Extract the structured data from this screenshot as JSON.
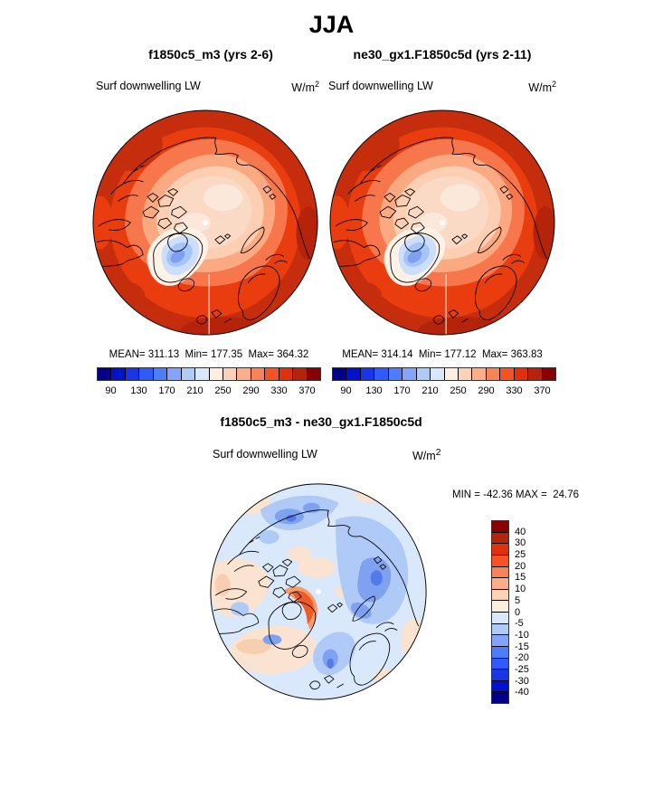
{
  "title": "JJA",
  "top_left": {
    "title": "f1850c5_m3 (yrs 2-6)",
    "field": "Surf downwelling LW",
    "units_base": "W/m",
    "units_exp": "2",
    "stats": "MEAN= 311.13  Min= 177.35  Max= 364.32",
    "ticks": [
      "90",
      "130",
      "170",
      "210",
      "250",
      "290",
      "330",
      "370"
    ],
    "palette": [
      "#00008B",
      "#0012CD",
      "#1A35E8",
      "#2E5BFA",
      "#4E7CFF",
      "#84A4FC",
      "#AECBF8",
      "#D8E8FB",
      "#FDEEDF",
      "#FCD2B6",
      "#FBAE87",
      "#FA8257",
      "#F85124",
      "#E1300B",
      "#B5230A",
      "#8B0000"
    ]
  },
  "top_right": {
    "title": "ne30_gx1.F1850c5d (yrs 2-11)",
    "field": "Surf downwelling LW",
    "units_base": "W/m",
    "units_exp": "2",
    "stats": "MEAN= 314.14  Min= 177.12  Max= 363.83",
    "ticks": [
      "90",
      "130",
      "170",
      "210",
      "250",
      "290",
      "330",
      "370"
    ],
    "palette": [
      "#00008B",
      "#0012CD",
      "#1A35E8",
      "#2E5BFA",
      "#4E7CFF",
      "#84A4FC",
      "#AECBF8",
      "#D8E8FB",
      "#FDEEDF",
      "#FCD2B6",
      "#FBAE87",
      "#FA8257",
      "#F85124",
      "#E1300B",
      "#B5230A",
      "#8B0000"
    ]
  },
  "diff": {
    "title": "f1850c5_m3 - ne30_gx1.F1850c5d",
    "field": "Surf downwelling LW",
    "units_base": "W/m",
    "units_exp": "2",
    "minmax": "MIN = -42.36 MAX =  24.76",
    "labels": [
      "40",
      "30",
      "25",
      "20",
      "15",
      "10",
      "5",
      "0",
      "-5",
      "-10",
      "-15",
      "-20",
      "-25",
      "-30",
      "-40"
    ],
    "palette": [
      "#8B0000",
      "#B5230A",
      "#E1300B",
      "#F85124",
      "#FA8257",
      "#FBAE87",
      "#FCD2B6",
      "#FDEEDF",
      "#D8E8FB",
      "#AECBF8",
      "#84A4FC",
      "#4E7CFF",
      "#2E5BFA",
      "#1A35E8",
      "#0012CD",
      "#00008B"
    ]
  },
  "chart_data": [
    {
      "type": "heatmap",
      "panel": "top-left",
      "season": "JJA",
      "title": "f1850c5_m3 (yrs 2-6)",
      "variable": "Surf downwelling LW",
      "units": "W/m2",
      "stats": {
        "mean": 311.13,
        "min": 177.35,
        "max": 364.32
      },
      "colorbar_ticks": [
        90,
        130,
        170,
        210,
        250,
        290,
        330,
        370
      ],
      "colorbar_orientation": "horizontal"
    },
    {
      "type": "heatmap",
      "panel": "top-right",
      "season": "JJA",
      "title": "ne30_gx1.F1850c5d (yrs 2-11)",
      "variable": "Surf downwelling LW",
      "units": "W/m2",
      "stats": {
        "mean": 314.14,
        "min": 177.12,
        "max": 363.83
      },
      "colorbar_ticks": [
        90,
        130,
        170,
        210,
        250,
        290,
        330,
        370
      ],
      "colorbar_orientation": "horizontal"
    },
    {
      "type": "heatmap",
      "panel": "difference",
      "season": "JJA",
      "title": "f1850c5_m3 - ne30_gx1.F1850c5d",
      "variable": "Surf downwelling LW",
      "units": "W/m2",
      "stats": {
        "min": -42.36,
        "max": 24.76
      },
      "colorbar_ticks": [
        40,
        30,
        25,
        20,
        15,
        10,
        5,
        0,
        -5,
        -10,
        -15,
        -20,
        -25,
        -30,
        -40
      ],
      "colorbar_orientation": "vertical"
    }
  ]
}
